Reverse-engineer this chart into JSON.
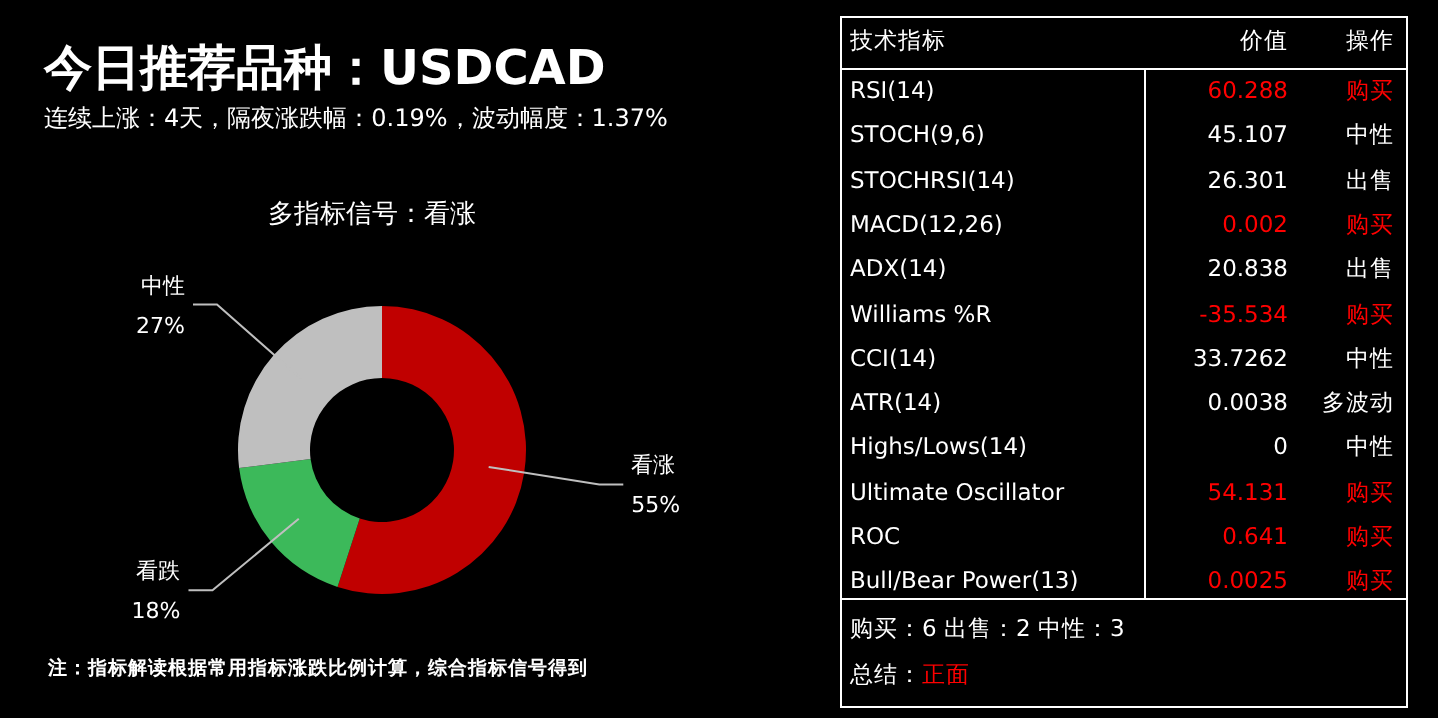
{
  "chart_data": [
    {
      "type": "donut",
      "title": "今日推荐品种：USDCAD",
      "subtitle": "连续上涨：4天，隔夜涨跌幅：0.19%，波动幅度：1.37%",
      "annotations": [
        "多指标信号：看涨",
        "注：指标解读根据常用指标涨跌比例计算，综合指标信号得到"
      ],
      "categories": [
        "看涨",
        "看跌",
        "中性"
      ],
      "values": [
        55,
        18,
        27
      ],
      "value_labels": [
        "55%",
        "18%",
        "27%"
      ],
      "colors": [
        "#c00000",
        "#3cb95a",
        "#bfbfbf"
      ]
    },
    {
      "type": "other",
      "categories": [
        "RSI(14)",
        "STOCH(9,6)",
        "STOCHRSI(14)",
        "MACD(12,26)",
        "ADX(14)",
        "Williams %R",
        "CCI(14)",
        "ATR(14)",
        "Highs/Lows(14)",
        "Ultimate Oscillator",
        "ROC",
        "Bull/Bear Power(13)"
      ],
      "value_labels": [
        "60.288",
        "45.107",
        "26.301",
        "0.002",
        "20.838",
        "-35.534",
        "33.7262",
        "0.0038",
        "0",
        "54.131",
        "0.641",
        "0.0025"
      ],
      "colors": [
        "#ff0000",
        "#ffffff",
        "#ffffff",
        "#ff0000",
        "#ffffff",
        "#ff0000",
        "#ffffff",
        "#ffffff",
        "#ffffff",
        "#ff0000",
        "#ff0000",
        "#ff0000",
        "#ff0000"
      ],
      "annotations": [
        "技术指标",
        "价值",
        "操作",
        "购买",
        "中性",
        "出售",
        "购买",
        "出售",
        "购买",
        "中性",
        "多波动",
        "中性",
        "购买",
        "购买",
        "购买",
        "购买：6 出售：2 中性：3",
        "总结：",
        "正面"
      ]
    }
  ]
}
